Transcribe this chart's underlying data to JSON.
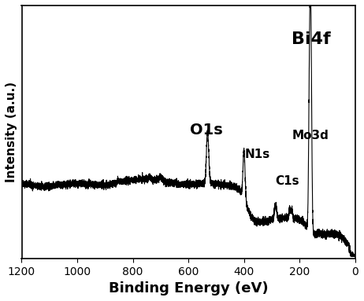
{
  "xlabel": "Binding Energy (eV)",
  "ylabel": "Intensity (a.u.)",
  "xlim": [
    1200,
    0
  ],
  "xticks": [
    1200,
    1000,
    800,
    600,
    400,
    200,
    0
  ],
  "annotations": [
    {
      "label": "O1s",
      "x": 535,
      "y_data": 0.52,
      "fontsize": 14,
      "fontweight": "bold",
      "ha": "center"
    },
    {
      "label": "N1s",
      "x": 398,
      "y_data": 0.41,
      "fontsize": 11,
      "fontweight": "bold",
      "ha": "left"
    },
    {
      "label": "C1s",
      "x": 287,
      "y_data": 0.28,
      "fontsize": 11,
      "fontweight": "bold",
      "ha": "left"
    },
    {
      "label": "Mo3d",
      "x": 228,
      "y_data": 0.5,
      "fontsize": 11,
      "fontweight": "bold",
      "ha": "left"
    },
    {
      "label": "Bi4f",
      "x": 158,
      "y_data": 0.95,
      "fontsize": 16,
      "fontweight": "bold",
      "ha": "center"
    }
  ],
  "line_color": "black",
  "line_width": 0.8,
  "background_color": "white",
  "xlabel_fontsize": 13,
  "ylabel_fontsize": 11,
  "xlabel_fontweight": "bold",
  "ylabel_fontweight": "bold"
}
